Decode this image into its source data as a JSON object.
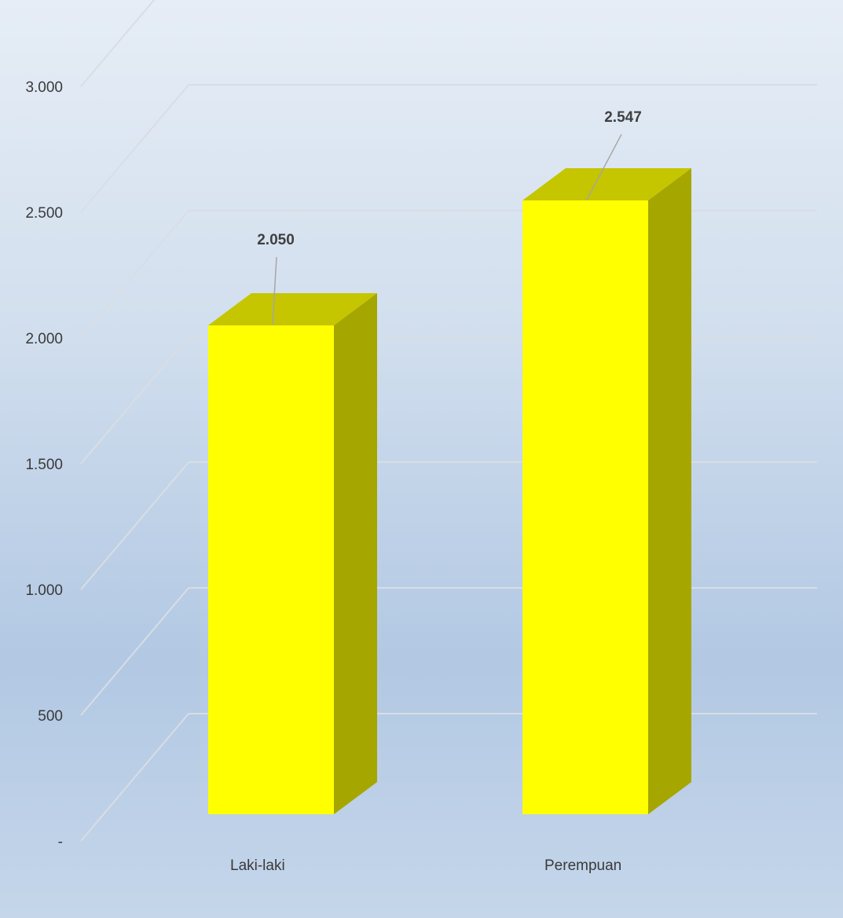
{
  "chart_data": {
    "type": "bar",
    "style": "3d-column",
    "categories": [
      "Laki-laki",
      "Perempuan"
    ],
    "values": [
      2050,
      2547
    ],
    "data_labels": [
      "2.050",
      "2.547"
    ],
    "yticks": [
      0,
      500,
      1000,
      1500,
      2000,
      2500,
      3000
    ],
    "ytick_labels": [
      "-",
      "500",
      "1.000",
      "1.500",
      "2.000",
      "2.500",
      "3.000"
    ],
    "ylim": [
      0,
      3000
    ],
    "grid": true,
    "legend": "none",
    "colors": {
      "bar_front": "#ffff00",
      "bar_top": "#c5c500",
      "bar_side": "#a6a600",
      "grid": "#d9dde4",
      "leader_line": "#a6a6a6"
    }
  }
}
